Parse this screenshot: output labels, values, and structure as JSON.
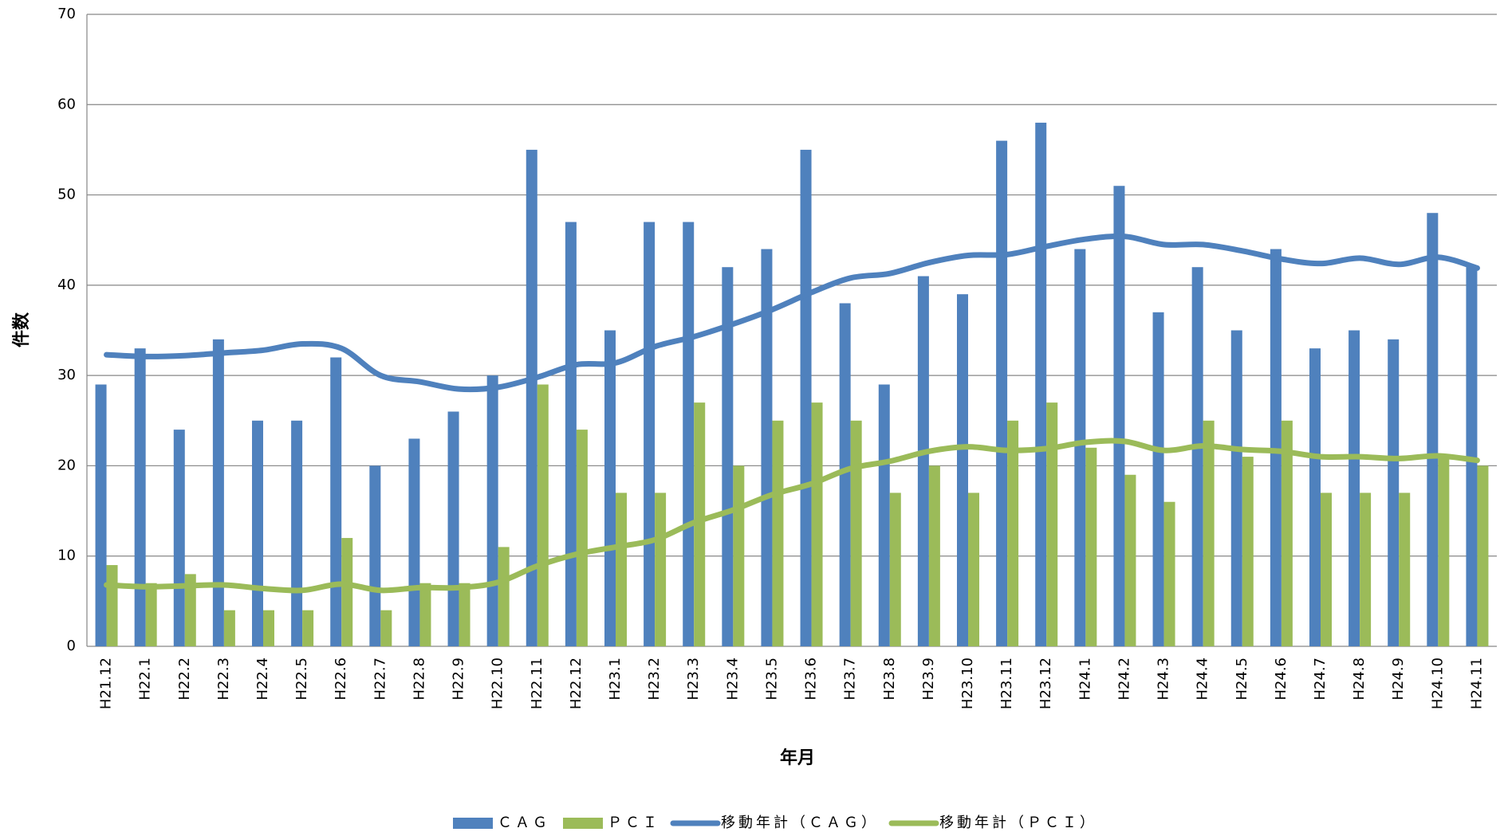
{
  "chart_data": {
    "type": "bar",
    "xlabel": "年月",
    "ylabel": "件数",
    "categories": [
      "H21.12",
      "H22.1",
      "H22.2",
      "H22.3",
      "H22.4",
      "H22.5",
      "H22.6",
      "H22.7",
      "H22.8",
      "H22.9",
      "H22.10",
      "H22.11",
      "H22.12",
      "H23.1",
      "H23.2",
      "H23.3",
      "H23.4",
      "H23.5",
      "H23.6",
      "H23.7",
      "H23.8",
      "H23.9",
      "H23.10",
      "H23.11",
      "H23.12",
      "H24.1",
      "H24.2",
      "H24.3",
      "H24.4",
      "H24.5",
      "H24.6",
      "H24.7",
      "H24.8",
      "H24.9",
      "H24.10",
      "H24.11"
    ],
    "series": [
      {
        "name": "ＣＡＧ",
        "type": "bar",
        "color": "#4f81bd",
        "values": [
          29,
          33,
          24,
          34,
          25,
          25,
          32,
          20,
          23,
          26,
          30,
          55,
          47,
          35,
          47,
          47,
          42,
          44,
          55,
          38,
          29,
          41,
          39,
          56,
          58,
          44,
          51,
          37,
          42,
          35,
          44,
          33,
          35,
          34,
          48,
          42
        ]
      },
      {
        "name": "ＰＣＩ",
        "type": "bar",
        "color": "#9bbb59",
        "values": [
          9,
          7,
          8,
          4,
          4,
          4,
          12,
          4,
          7,
          7,
          11,
          29,
          24,
          17,
          17,
          27,
          20,
          25,
          27,
          25,
          17,
          20,
          17,
          25,
          27,
          22,
          19,
          16,
          25,
          21,
          25,
          17,
          17,
          17,
          21,
          20
        ]
      },
      {
        "name": "移動年計（ＣＡＧ）",
        "type": "line",
        "color": "#4f81bd",
        "values": [
          32.3,
          32.1,
          32.2,
          32.5,
          32.8,
          33.5,
          33,
          30,
          29.3,
          28.5,
          28.7,
          29.8,
          31.2,
          31.4,
          33.2,
          34.3,
          35.7,
          37.3,
          39.2,
          40.8,
          41.3,
          42.5,
          43.3,
          43.4,
          44.3,
          45.1,
          45.4,
          44.5,
          44.5,
          43.8,
          42.9,
          42.4,
          43,
          42.3,
          43.1,
          41.9
        ]
      },
      {
        "name": "移動年計（ＰＣＩ）",
        "type": "line",
        "color": "#9bbb59",
        "values": [
          6.8,
          6.6,
          6.7,
          6.8,
          6.4,
          6.2,
          6.9,
          6.2,
          6.5,
          6.5,
          7.1,
          8.9,
          10.2,
          11,
          11.8,
          13.7,
          15.1,
          16.8,
          18,
          19.7,
          20.5,
          21.6,
          22.1,
          21.7,
          21.9,
          22.6,
          22.7,
          21.7,
          22.2,
          21.8,
          21.6,
          21,
          21,
          20.8,
          21.1,
          20.6
        ]
      }
    ],
    "ylim": [
      0,
      70
    ],
    "yticks": [
      0,
      10,
      20,
      30,
      40,
      50,
      60,
      70
    ],
    "grid": true,
    "legend": "bottom"
  }
}
